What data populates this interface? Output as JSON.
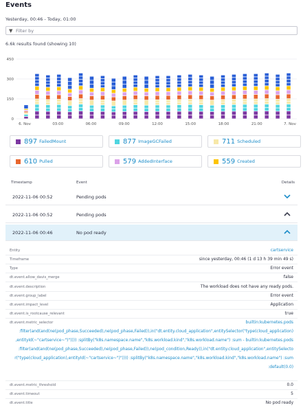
{
  "page": {
    "title": "Events",
    "timeframe": "Yesterday, 00:46 - Today, 01:00",
    "filter_placeholder": "Filter by",
    "results": "6.6k results found (showing 10)"
  },
  "chart_data": {
    "type": "bar",
    "stacked": true,
    "ylim": [
      0,
      450
    ],
    "y_ticks": [
      "450",
      "300",
      "150",
      "0"
    ],
    "x_ticks": [
      "6. Nov",
      "03:00",
      "06:00",
      "09:00",
      "12:00",
      "15:00",
      "18:00",
      "21:00",
      "7. Nov"
    ],
    "categories": [
      "00:46",
      "01:46",
      "02:46",
      "03:46",
      "04:46",
      "05:46",
      "06:46",
      "07:46",
      "08:46",
      "09:46",
      "10:46",
      "11:46",
      "12:46",
      "13:46",
      "14:46",
      "15:46",
      "16:46",
      "17:46",
      "18:46",
      "19:46",
      "20:46",
      "21:46",
      "22:46",
      "23:46",
      "00:46"
    ],
    "totals": [
      105,
      340,
      330,
      335,
      310,
      345,
      320,
      325,
      305,
      320,
      330,
      320,
      325,
      325,
      330,
      335,
      330,
      320,
      330,
      335,
      340,
      340,
      345,
      335,
      345
    ],
    "series": [
      {
        "name": "FailedMount",
        "color": "#7c38a1",
        "share": 0.17
      },
      {
        "name": "ImageGCFailed",
        "color": "#4fd5e0",
        "share": 0.15
      },
      {
        "name": "Scheduled",
        "color": "#f7e8a8",
        "share": 0.12
      },
      {
        "name": "Pulled",
        "color": "#e8662d",
        "share": 0.1
      },
      {
        "name": "AddedInterface",
        "color": "#dba2e9",
        "share": 0.09
      },
      {
        "name": "Created",
        "color": "#fdc400",
        "share": 0.09
      },
      {
        "name": "Other",
        "color": "#2a5fd6",
        "share": 0.28
      }
    ]
  },
  "legend": [
    {
      "count": "897",
      "label": "FailedMount",
      "color": "#7c38a1"
    },
    {
      "count": "877",
      "label": "ImageGCFailed",
      "color": "#4fd5e0"
    },
    {
      "count": "711",
      "label": "Scheduled",
      "color": "#f7e8a8"
    },
    {
      "count": "610",
      "label": "Pulled",
      "color": "#e8662d"
    },
    {
      "count": "579",
      "label": "AddedInterface",
      "color": "#dba2e9"
    },
    {
      "count": "559",
      "label": "Created",
      "color": "#fdc400"
    }
  ],
  "table": {
    "headers": {
      "timestamp": "Timestamp",
      "event": "Event",
      "details": "Details"
    },
    "rows": [
      {
        "timestamp": "2022-11-06 00:52",
        "event": "Pending pods"
      },
      {
        "timestamp": "2022-11-06 00:52",
        "event": "Pending pods"
      },
      {
        "timestamp": "2022-11-06 00:46",
        "event": "No pod ready"
      }
    ]
  },
  "details": {
    "entity": {
      "key": "Entity",
      "value": "cartservice"
    },
    "timeframe": {
      "key": "Timeframe",
      "value": "since yesterday, 00:46 (1 d 13 h 39 min 49 s)"
    },
    "type": {
      "key": "Type",
      "value": "Error event"
    },
    "allow_davis_merge": {
      "key": "dt.event.allow_davis_merge",
      "value": "false"
    },
    "description": {
      "key": "dt.event.description",
      "value": "The workload does not have any ready pods."
    },
    "group_label": {
      "key": "dt.event.group_label",
      "value": "Error event"
    },
    "impact_level": {
      "key": "dt.event.impact_level",
      "value": "Application"
    },
    "is_rootcause_relevant": {
      "key": "dt.event.is_rootcause_relevant",
      "value": "true"
    },
    "metric_selector": {
      "key": "dt.event.metric_selector",
      "lines": [
        "builtin:kubernetes.pods",
        ":filter(and(and(ne(pod_phase,Succeeded),ne(pod_phase,Failed)),in(\"dt.entity.cloud_application\",entitySelector(\"type(cloud_application)",
        ",entityId(~\"cartservice~\")\")))) :splitBy(\"k8s.namespace.name\",\"k8s.workload.kind\",\"k8s.workload.name\") :sum - builtin:kubernetes.pods",
        ":filter(and(and(ne(pod_phase,Succeeded),ne(pod_phase,Failed)),ne(pod_condition,Ready)),in(\"dt.entity.cloud_application\",entitySelecto",
        "r(\"type(cloud_application),entityId(~\"cartservice~\")\")))) :splitBy(\"k8s.namespace.name\",\"k8s.workload.kind\",\"k8s.workload.name\") :sum",
        ":default(0.0)"
      ]
    },
    "metric_threshold": {
      "key": "dt.event.metric_threshold",
      "value": "0.0"
    },
    "timeout": {
      "key": "dt.event.timeout",
      "value": "5"
    },
    "title": {
      "key": "dt.event.title",
      "value": "No pod ready"
    }
  },
  "icons": {
    "filter": "filter-funnel-icon",
    "expand": "chevron-down-icon",
    "collapse": "chevron-up-icon"
  }
}
